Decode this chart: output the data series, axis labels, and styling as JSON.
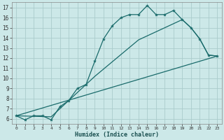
{
  "xlabel": "Humidex (Indice chaleur)",
  "bg_color": "#cce8e8",
  "grid_color": "#aacccc",
  "line_color": "#1a6b6b",
  "xlim": [
    -0.5,
    23.5
  ],
  "ylim": [
    5.5,
    17.5
  ],
  "xticks": [
    0,
    1,
    2,
    3,
    4,
    5,
    6,
    7,
    8,
    9,
    10,
    11,
    12,
    13,
    14,
    15,
    16,
    17,
    18,
    19,
    20,
    21,
    22,
    23
  ],
  "yticks": [
    6,
    7,
    8,
    9,
    10,
    11,
    12,
    13,
    14,
    15,
    16,
    17
  ],
  "curve1_x": [
    0,
    1,
    2,
    3,
    4,
    5,
    6,
    7,
    8,
    9,
    10,
    11,
    12,
    13,
    14,
    15,
    16,
    17,
    18,
    19,
    20,
    21,
    22,
    23
  ],
  "curve1_y": [
    6.3,
    5.9,
    6.3,
    6.3,
    5.9,
    7.2,
    7.8,
    9.0,
    9.4,
    11.7,
    13.9,
    15.2,
    16.0,
    16.3,
    16.3,
    17.2,
    16.3,
    16.3,
    16.7,
    15.8,
    15.0,
    13.9,
    12.3,
    12.2
  ],
  "curve2_x": [
    0,
    23
  ],
  "curve2_y": [
    6.3,
    12.2
  ],
  "curve3_x": [
    0,
    4,
    5,
    9,
    14,
    19,
    20,
    21,
    22,
    23
  ],
  "curve3_y": [
    6.3,
    6.2,
    7.0,
    10.2,
    13.8,
    15.8,
    15.0,
    13.9,
    12.3,
    12.2
  ]
}
